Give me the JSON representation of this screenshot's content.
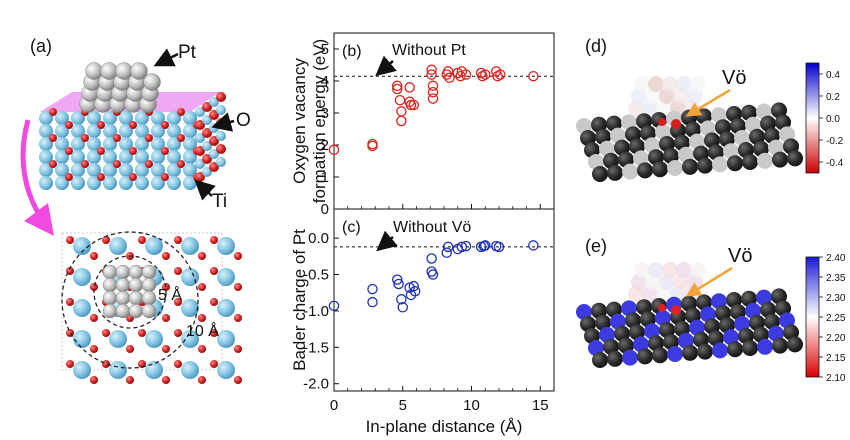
{
  "panels": {
    "a": "(a)",
    "b": "(b)",
    "c": "(c)",
    "d": "(d)",
    "e": "(e)"
  },
  "structure_labels": {
    "pt": "Pt",
    "o": "O",
    "ti": "Ti",
    "r5": "5 Å",
    "r10": "10 Å"
  },
  "vacancy_label": "Vö",
  "colors": {
    "red_series": "#e0201a",
    "blue_series": "#1f2fbf",
    "ti_atom": "#7fc3e3",
    "o_atom": "#d21f1f",
    "pt_atom": "#b9b9b9",
    "arrow_pink": "#f04ae0",
    "vac_arrow": "#f2a43a"
  },
  "chart_data": [
    {
      "type": "scatter",
      "panel": "b",
      "ylabel": "Oxygen vacancy formation energy (eV)",
      "ylabel_lines": [
        "Oxygen vacancy",
        "formation energy (eV)"
      ],
      "xlim": [
        0,
        16
      ],
      "ylim": [
        0,
        5.5
      ],
      "yticks": [
        "0",
        "1",
        "2",
        "3",
        "4",
        "5"
      ],
      "ytick_values": [
        0,
        1,
        2,
        3,
        4,
        5
      ],
      "reference_value": 4.15,
      "annotation": "Without Pt",
      "marker": "open-circle",
      "color": "#e0201a",
      "points": [
        [
          0,
          1.85
        ],
        [
          2.8,
          1.97
        ],
        [
          2.8,
          2.03
        ],
        [
          4.6,
          3.85
        ],
        [
          4.6,
          3.75
        ],
        [
          4.8,
          3.4
        ],
        [
          4.9,
          3.05
        ],
        [
          4.9,
          2.75
        ],
        [
          5.5,
          3.8
        ],
        [
          5.5,
          3.35
        ],
        [
          5.6,
          3.25
        ],
        [
          5.8,
          3.25
        ],
        [
          7.1,
          4.35
        ],
        [
          7.1,
          4.2
        ],
        [
          7.2,
          3.85
        ],
        [
          7.2,
          3.65
        ],
        [
          7.2,
          3.45
        ],
        [
          8.2,
          4.2
        ],
        [
          8.3,
          4.3
        ],
        [
          8.4,
          4.1
        ],
        [
          9.0,
          4.25
        ],
        [
          9.2,
          4.15
        ],
        [
          9.3,
          4.3
        ],
        [
          9.6,
          4.2
        ],
        [
          10.7,
          4.25
        ],
        [
          10.8,
          4.15
        ],
        [
          11.0,
          4.2
        ],
        [
          11.8,
          4.3
        ],
        [
          11.9,
          4.15
        ],
        [
          12.1,
          4.2
        ],
        [
          14.5,
          4.15
        ]
      ]
    },
    {
      "type": "scatter",
      "panel": "c",
      "ylabel": "Bader charge of Pt",
      "xlabel": "In-plane distance (Å)",
      "xlim": [
        0,
        16
      ],
      "ylim": [
        -2.1,
        0.4
      ],
      "xticks": [
        "0",
        "5",
        "10",
        "15"
      ],
      "xtick_values": [
        0,
        5,
        10,
        15
      ],
      "yticks": [
        "0.0",
        "-0.5",
        "-1.0",
        "-1.5",
        "-2.0"
      ],
      "ytick_values": [
        0,
        -0.5,
        -1.0,
        -1.5,
        -2.0
      ],
      "reference_value": -0.12,
      "annotation": "Without Vö",
      "marker": "open-circle",
      "color": "#1f2fbf",
      "points": [
        [
          0,
          -0.93
        ],
        [
          2.8,
          -0.7
        ],
        [
          2.8,
          -0.88
        ],
        [
          4.6,
          -0.57
        ],
        [
          4.7,
          -0.63
        ],
        [
          4.9,
          -0.84
        ],
        [
          5.0,
          -0.95
        ],
        [
          5.5,
          -0.68
        ],
        [
          5.6,
          -0.78
        ],
        [
          5.8,
          -0.66
        ],
        [
          5.9,
          -0.73
        ],
        [
          7.1,
          -0.28
        ],
        [
          7.1,
          -0.46
        ],
        [
          7.2,
          -0.5
        ],
        [
          8.2,
          -0.2
        ],
        [
          8.3,
          -0.12
        ],
        [
          9.0,
          -0.15
        ],
        [
          9.3,
          -0.12
        ],
        [
          9.6,
          -0.11
        ],
        [
          10.7,
          -0.12
        ],
        [
          10.9,
          -0.11
        ],
        [
          11.0,
          -0.1
        ],
        [
          11.8,
          -0.11
        ],
        [
          12.0,
          -0.12
        ],
        [
          14.5,
          -0.1
        ]
      ]
    },
    {
      "type": "heatmap",
      "panel": "d",
      "colorbar_ticks": [
        "0.4",
        "0.2",
        "0.0",
        "-0.2",
        "-0.4"
      ],
      "colorbar_values": [
        0.4,
        0.2,
        0.0,
        -0.2,
        -0.4
      ],
      "colorbar_range": [
        -0.5,
        0.5
      ],
      "colorbar_colors": [
        "#cc0000",
        "#ffffff",
        "#0000cc"
      ]
    },
    {
      "type": "heatmap",
      "panel": "e",
      "colorbar_ticks": [
        "2.40",
        "2.35",
        "2.30",
        "2.25",
        "2.20",
        "2.15",
        "2.10"
      ],
      "colorbar_values": [
        2.4,
        2.35,
        2.3,
        2.25,
        2.2,
        2.15,
        2.1
      ],
      "colorbar_range": [
        2.1,
        2.4
      ],
      "colorbar_colors": [
        "#dd0000",
        "#ffffff",
        "#1a1ad8"
      ]
    }
  ]
}
